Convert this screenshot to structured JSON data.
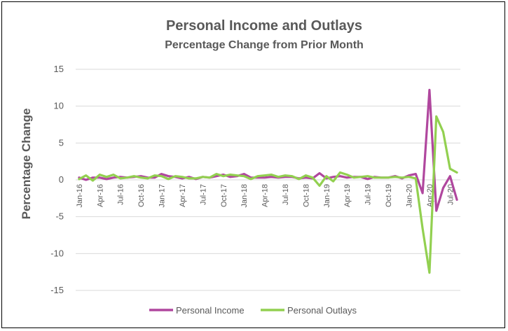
{
  "chart_data": {
    "type": "line",
    "title": "Personal Income and Outlays",
    "subtitle": "Percentage Change from Prior Month",
    "ylabel": "Percentage Change",
    "xlabel": "",
    "ylim": [
      -15,
      15
    ],
    "yticks": [
      15,
      10,
      5,
      0,
      -5,
      -10,
      -15
    ],
    "grid": true,
    "legend_position": "bottom",
    "x": [
      "Jan-16",
      "Feb-16",
      "Mar-16",
      "Apr-16",
      "May-16",
      "Jun-16",
      "Jul-16",
      "Aug-16",
      "Sep-16",
      "Oct-16",
      "Nov-16",
      "Dec-16",
      "Jan-17",
      "Feb-17",
      "Mar-17",
      "Apr-17",
      "May-17",
      "Jun-17",
      "Jul-17",
      "Aug-17",
      "Sep-17",
      "Oct-17",
      "Nov-17",
      "Dec-17",
      "Jan-18",
      "Feb-18",
      "Mar-18",
      "Apr-18",
      "May-18",
      "Jun-18",
      "Jul-18",
      "Aug-18",
      "Sep-18",
      "Oct-18",
      "Nov-18",
      "Dec-18",
      "Jan-19",
      "Feb-19",
      "Mar-19",
      "Apr-19",
      "May-19",
      "Jun-19",
      "Jul-19",
      "Aug-19",
      "Sep-19",
      "Oct-19",
      "Nov-19",
      "Dec-19",
      "Jan-20",
      "Feb-20",
      "Mar-20",
      "Apr-20",
      "May-20",
      "Jun-20",
      "Jul-20",
      "Aug-20"
    ],
    "x_tick_labels": [
      "Jan-16",
      "Apr-16",
      "Jul-16",
      "Oct-16",
      "Jan-17",
      "Apr-17",
      "Jul-17",
      "Oct-17",
      "Jan-18",
      "Apr-18",
      "Jul-18",
      "Oct-18",
      "Jan-19",
      "Apr-19",
      "Jul-19",
      "Oct-19",
      "Jan-20",
      "Apr-20",
      "Jul-20"
    ],
    "series": [
      {
        "name": "Personal Income",
        "color": "#B0479E",
        "values": [
          0.3,
          0.0,
          0.3,
          0.3,
          0.1,
          0.3,
          0.4,
          0.3,
          0.4,
          0.5,
          0.3,
          0.3,
          0.8,
          0.5,
          0.4,
          0.2,
          0.4,
          0.1,
          0.4,
          0.3,
          0.5,
          0.7,
          0.4,
          0.5,
          0.8,
          0.3,
          0.3,
          0.3,
          0.4,
          0.3,
          0.4,
          0.4,
          0.2,
          0.3,
          0.2,
          0.9,
          0.2,
          0.4,
          0.5,
          0.3,
          0.4,
          0.4,
          0.1,
          0.4,
          0.3,
          0.3,
          0.5,
          0.2,
          0.6,
          0.8,
          -1.8,
          12.2,
          -4.2,
          -1.1,
          0.5,
          -2.7
        ]
      },
      {
        "name": "Personal Outlays",
        "color": "#92D050",
        "values": [
          0.1,
          0.6,
          -0.1,
          0.7,
          0.4,
          0.7,
          0.2,
          0.3,
          0.5,
          0.3,
          0.2,
          0.6,
          0.5,
          0.1,
          0.5,
          0.4,
          0.2,
          0.2,
          0.4,
          0.3,
          0.8,
          0.5,
          0.7,
          0.6,
          0.5,
          0.1,
          0.5,
          0.6,
          0.7,
          0.4,
          0.6,
          0.5,
          0.1,
          0.6,
          0.3,
          -0.8,
          0.5,
          -0.2,
          1.0,
          0.7,
          0.3,
          0.4,
          0.5,
          0.3,
          0.3,
          0.3,
          0.4,
          0.3,
          0.4,
          0.2,
          -6.6,
          -12.6,
          8.6,
          6.5,
          1.5,
          1.0
        ]
      }
    ]
  }
}
